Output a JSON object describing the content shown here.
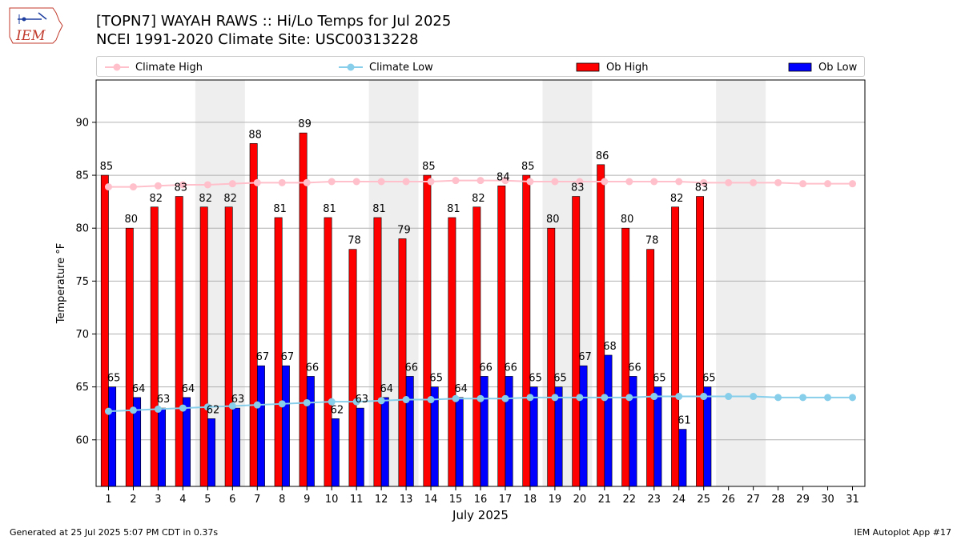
{
  "header": {
    "title_line1": "[TOPN7] WAYAH RAWS :: Hi/Lo Temps for Jul 2025",
    "title_line2": "NCEI 1991-2020 Climate Site: USC00313228"
  },
  "logo": {
    "text": "IEM",
    "icon": "iowa-state-outline-weather-logo"
  },
  "footer": {
    "left": "Generated at 25 Jul 2025 5:07 PM CDT in 0.37s",
    "right": "IEM Autoplot App #17"
  },
  "chart_data": {
    "type": "bar",
    "xlabel": "July 2025",
    "ylabel": "Temperature °F",
    "ylim": [
      55.6,
      94.0
    ],
    "yticks": [
      60,
      65,
      70,
      75,
      80,
      85,
      90
    ],
    "grid": "horizontal",
    "legend_position": "top",
    "categories": [
      "1",
      "2",
      "3",
      "4",
      "5",
      "6",
      "7",
      "8",
      "9",
      "10",
      "11",
      "12",
      "13",
      "14",
      "15",
      "16",
      "17",
      "18",
      "19",
      "20",
      "21",
      "22",
      "23",
      "24",
      "25",
      "26",
      "27",
      "28",
      "29",
      "30",
      "31"
    ],
    "weekend_shading": [
      [
        5,
        6
      ],
      [
        12,
        13
      ],
      [
        19,
        20
      ],
      [
        26,
        27
      ]
    ],
    "series": [
      {
        "name": "Ob High",
        "kind": "bar",
        "color": "#ff0000",
        "values": [
          85,
          80,
          82,
          83,
          82,
          82,
          88,
          81,
          89,
          81,
          78,
          81,
          79,
          85,
          81,
          82,
          84,
          85,
          80,
          83,
          86,
          80,
          78,
          82,
          83,
          null,
          null,
          null,
          null,
          null,
          null
        ]
      },
      {
        "name": "Ob Low",
        "kind": "bar",
        "color": "#0000ff",
        "values": [
          65,
          64,
          63,
          64,
          62,
          63,
          67,
          67,
          66,
          62,
          63,
          64,
          66,
          65,
          64,
          66,
          66,
          65,
          65,
          67,
          68,
          66,
          65,
          61,
          65,
          null,
          null,
          null,
          null,
          null,
          null
        ]
      },
      {
        "name": "Climate High",
        "kind": "line",
        "color": "#ffc0cb",
        "values": [
          83.9,
          83.9,
          84.0,
          84.1,
          84.1,
          84.2,
          84.3,
          84.3,
          84.3,
          84.4,
          84.4,
          84.4,
          84.4,
          84.4,
          84.5,
          84.5,
          84.5,
          84.4,
          84.4,
          84.4,
          84.4,
          84.4,
          84.4,
          84.4,
          84.3,
          84.3,
          84.3,
          84.3,
          84.2,
          84.2,
          84.2
        ]
      },
      {
        "name": "Climate Low",
        "kind": "line",
        "color": "#87ceeb",
        "values": [
          62.7,
          62.8,
          62.9,
          63.0,
          63.1,
          63.2,
          63.3,
          63.4,
          63.5,
          63.6,
          63.6,
          63.7,
          63.8,
          63.8,
          63.9,
          63.9,
          63.9,
          64.0,
          64.0,
          64.0,
          64.0,
          64.0,
          64.1,
          64.1,
          64.1,
          64.1,
          64.1,
          64.0,
          64.0,
          64.0,
          64.0
        ]
      }
    ]
  }
}
